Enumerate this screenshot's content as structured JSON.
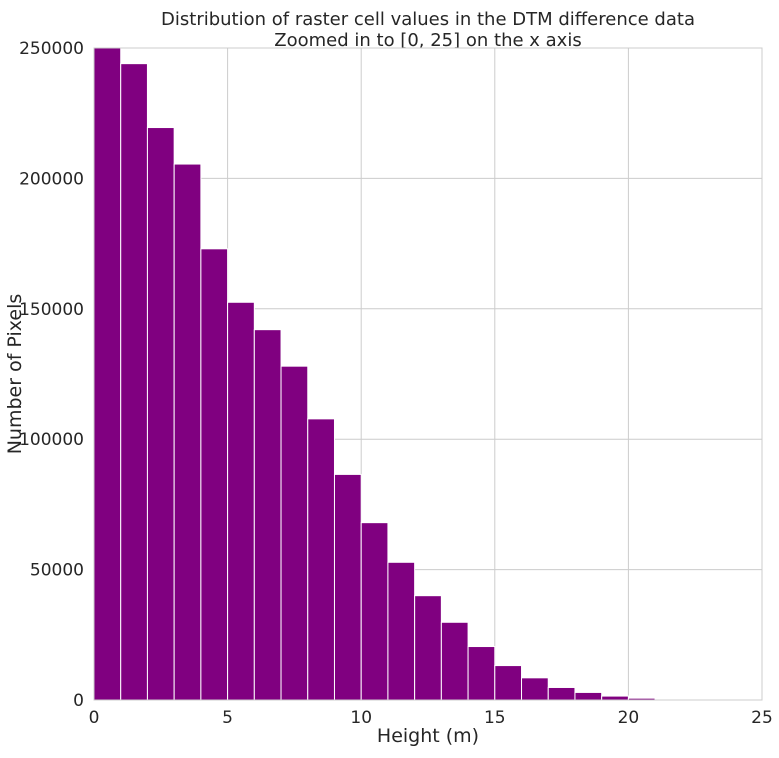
{
  "chart_data": {
    "type": "bar",
    "title_line1": "Distribution of raster cell values in the DTM difference data",
    "title_line2": "Zoomed in to [0, 25] on the x axis",
    "xlabel": "Height (m)",
    "ylabel": "Number of Pixels",
    "xlim": [
      0,
      25
    ],
    "ylim": [
      0,
      250000
    ],
    "grid": true,
    "x_ticks": [
      0,
      5,
      10,
      15,
      20,
      25
    ],
    "y_ticks": [
      0,
      50000,
      100000,
      150000,
      200000,
      250000
    ],
    "bar_color": "#800080",
    "grid_color": "#cccccc",
    "bins": [
      {
        "x0": 0,
        "x1": 1,
        "value": 250000
      },
      {
        "x0": 1,
        "x1": 2,
        "value": 244000
      },
      {
        "x0": 2,
        "x1": 3,
        "value": 219500
      },
      {
        "x0": 3,
        "x1": 4,
        "value": 205500
      },
      {
        "x0": 4,
        "x1": 5,
        "value": 173000
      },
      {
        "x0": 5,
        "x1": 6,
        "value": 152500
      },
      {
        "x0": 6,
        "x1": 7,
        "value": 142000
      },
      {
        "x0": 7,
        "x1": 8,
        "value": 128000
      },
      {
        "x0": 8,
        "x1": 9,
        "value": 107800
      },
      {
        "x0": 9,
        "x1": 10,
        "value": 86500
      },
      {
        "x0": 10,
        "x1": 11,
        "value": 68000
      },
      {
        "x0": 11,
        "x1": 12,
        "value": 52800
      },
      {
        "x0": 12,
        "x1": 13,
        "value": 40000
      },
      {
        "x0": 13,
        "x1": 14,
        "value": 29800
      },
      {
        "x0": 14,
        "x1": 15,
        "value": 20500
      },
      {
        "x0": 15,
        "x1": 16,
        "value": 13200
      },
      {
        "x0": 16,
        "x1": 17,
        "value": 8500
      },
      {
        "x0": 17,
        "x1": 18,
        "value": 4800
      },
      {
        "x0": 18,
        "x1": 19,
        "value": 2900
      },
      {
        "x0": 19,
        "x1": 20,
        "value": 1500
      },
      {
        "x0": 20,
        "x1": 21,
        "value": 700
      },
      {
        "x0": 21,
        "x1": 22,
        "value": 300
      },
      {
        "x0": 22,
        "x1": 23,
        "value": 150
      },
      {
        "x0": 23,
        "x1": 24,
        "value": 70
      },
      {
        "x0": 24,
        "x1": 25,
        "value": 30
      }
    ]
  }
}
